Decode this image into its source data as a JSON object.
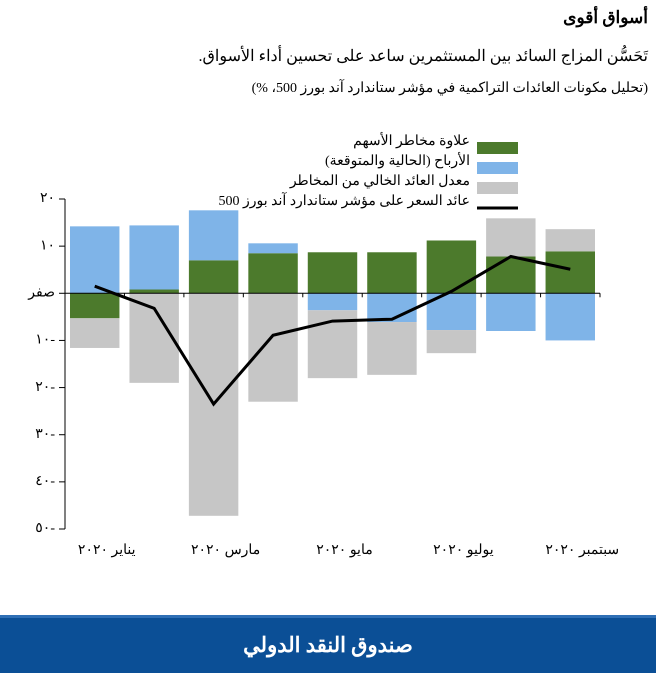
{
  "header": {
    "title": "أسواق أقوى",
    "subtitle": "تَحَسُّن المزاج السائد بين المستثمرين ساعد على تحسين أداء الأسواق.",
    "note": "(تحليل مكونات العائدات التراكمية في مؤشر ستاندارد آند بورز 500، %)"
  },
  "chart_data": {
    "type": "bar",
    "stacked": true,
    "categories": [
      "يناير ٢٠٢٠",
      null,
      "مارس ٢٠٢٠",
      null,
      "مايو ٢٠٢٠",
      null,
      "يوليو ٢٠٢٠",
      null,
      "سبتمبر ٢٠٢٠"
    ],
    "series": [
      {
        "name": "علاوة مخاطر الأسهم",
        "color": "#4c7a2c",
        "values": [
          -5.3,
          0.8,
          7,
          8.5,
          8.7,
          8.7,
          11.2,
          7.8,
          8.9
        ]
      },
      {
        "name": "الأرباح (الحالية والمتوقعة)",
        "color": "#7fb4e8",
        "values": [
          14.2,
          13.6,
          10.6,
          2.1,
          -3.6,
          -6.1,
          -7.8,
          -8,
          -10
        ]
      },
      {
        "name": "معدل العائد الخالي من المخاطر",
        "color": "#c6c6c6",
        "values": [
          -6.3,
          -19,
          -47.2,
          -23,
          -14.4,
          -11.2,
          -4.9,
          8.1,
          4.7
        ]
      },
      {
        "name": "عائد السعر على مؤشر ستاندارد آند بورز 500",
        "color": "#000000",
        "type": "line",
        "values": [
          1.5,
          -3.2,
          -23.5,
          -8.9,
          -5.9,
          -5.5,
          0.4,
          7.8,
          5.1
        ]
      }
    ],
    "ylim": [
      -50,
      20
    ],
    "yticks": [
      {
        "value": 20,
        "label": "٢٠"
      },
      {
        "value": 10,
        "label": "١٠"
      },
      {
        "value": 0,
        "label": "صفر"
      },
      {
        "value": -10,
        "label": "١٠-"
      },
      {
        "value": -20,
        "label": "٢٠-"
      },
      {
        "value": -30,
        "label": "٣٠-"
      },
      {
        "value": -40,
        "label": "٤٠-"
      },
      {
        "value": -50,
        "label": "٥٠-"
      }
    ]
  },
  "footer": {
    "text": "صندوق النقد الدولي"
  }
}
